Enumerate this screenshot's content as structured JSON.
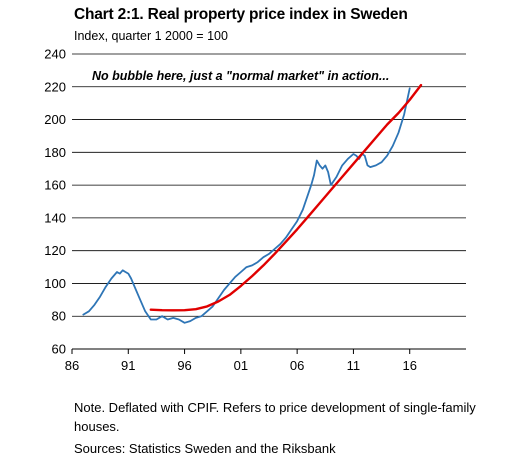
{
  "chart_data": {
    "type": "line",
    "title": "Chart 2:1. Real property price index in Sweden",
    "subtitle": "Index, quarter 1 2000 = 100",
    "annotation": "No bubble here, just a \"normal market\" in action...",
    "note": "Note. Deflated with CPIF. Refers to price development of single-family houses.",
    "sources": "Sources: Statistics Sweden and the Riksbank",
    "xlim": [
      86,
      21
    ],
    "ylim": [
      60,
      240
    ],
    "x_ticks": [
      "86",
      "91",
      "96",
      "01",
      "06",
      "11",
      "16"
    ],
    "y_ticks": [
      "60",
      "80",
      "100",
      "120",
      "140",
      "160",
      "180",
      "200",
      "220",
      "240"
    ],
    "grid": "horizontal",
    "series": [
      {
        "color": "#2e75b6",
        "x": [
          1987.0,
          1987.5,
          1988.0,
          1988.5,
          1989.0,
          1989.5,
          1990.0,
          1990.25,
          1990.5,
          1990.75,
          1991.0,
          1991.25,
          1991.5,
          1992.0,
          1992.5,
          1993.0,
          1993.5,
          1994.0,
          1994.5,
          1995.0,
          1995.5,
          1996.0,
          1996.5,
          1997.0,
          1997.5,
          1998.0,
          1998.5,
          1999.0,
          1999.5,
          2000.0,
          2000.5,
          2001.0,
          2001.5,
          2002.0,
          2002.5,
          2003.0,
          2003.5,
          2004.0,
          2004.5,
          2005.0,
          2005.5,
          2006.0,
          2006.5,
          2007.0,
          2007.25,
          2007.5,
          2007.75,
          2008.0,
          2008.25,
          2008.5,
          2008.75,
          2009.0,
          2009.5,
          2010.0,
          2010.5,
          2011.0,
          2011.25,
          2011.5,
          2011.75,
          2012.0,
          2012.25,
          2012.5,
          2013.0,
          2013.5,
          2014.0,
          2014.5,
          2015.0,
          2015.5,
          2016.0
        ],
        "values": [
          81,
          83,
          87,
          92,
          98,
          103,
          107,
          106,
          108,
          107,
          106,
          103,
          99,
          91,
          83,
          78,
          78,
          80,
          78,
          79,
          78,
          76,
          77,
          79,
          80,
          83,
          86,
          91,
          96,
          100,
          104,
          107,
          110,
          111,
          113,
          116,
          118,
          121,
          124,
          128,
          133,
          138,
          145,
          155,
          160,
          166,
          175,
          172,
          170,
          172,
          168,
          160,
          165,
          172,
          176,
          179,
          178,
          176,
          179,
          178,
          172,
          171,
          172,
          174,
          178,
          184,
          192,
          203,
          219
        ]
      },
      {
        "color": "#e00000",
        "x": [
          1993.0,
          1994.0,
          1995.0,
          1996.0,
          1997.0,
          1998.0,
          1999.0,
          2000.0,
          2001.0,
          2002.0,
          2003.0,
          2004.0,
          2005.0,
          2006.0,
          2007.0,
          2008.0,
          2009.0,
          2010.0,
          2011.0,
          2012.0,
          2013.0,
          2014.0,
          2015.0,
          2016.0,
          2017.0
        ],
        "values": [
          84,
          83.7,
          83.6,
          83.7,
          84.3,
          86,
          89,
          93,
          98.5,
          104.5,
          111,
          118,
          125.5,
          133,
          141,
          149,
          157,
          165,
          173,
          181,
          189,
          197,
          204,
          212,
          221
        ]
      }
    ]
  }
}
